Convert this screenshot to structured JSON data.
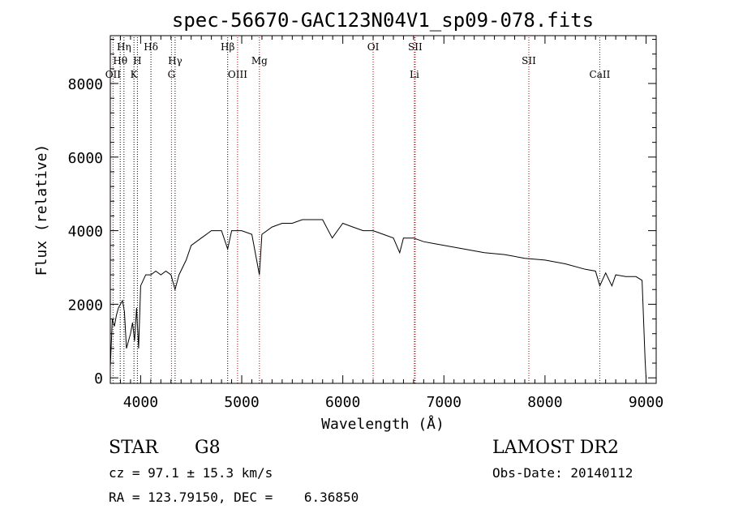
{
  "chart_data": {
    "type": "line",
    "title": "spec-56670-GAC123N04V1_sp09-078.fits",
    "xlabel": "Wavelength (Å)",
    "ylabel": "Flux (relative)",
    "xlim": [
      3700,
      9100
    ],
    "ylim": [
      -150,
      9300
    ],
    "xticks": [
      4000,
      5000,
      6000,
      7000,
      8000,
      9000
    ],
    "yticks": [
      0,
      2000,
      4000,
      6000,
      8000
    ],
    "grid": false,
    "series": [
      {
        "x": [
          3700,
          3720,
          3740,
          3760,
          3780,
          3800,
          3820,
          3840,
          3860,
          3880,
          3900,
          3920,
          3940,
          3960,
          3980,
          4000,
          4050,
          4100,
          4150,
          4200,
          4250,
          4300,
          4340,
          4380,
          4450,
          4500,
          4600,
          4700,
          4800,
          4861,
          4900,
          5000,
          5100,
          5175,
          5200,
          5300,
          5400,
          5500,
          5600,
          5700,
          5800,
          5895,
          6000,
          6100,
          6200,
          6300,
          6400,
          6500,
          6563,
          6600,
          6700,
          6800,
          6900,
          7000,
          7200,
          7400,
          7600,
          7800,
          8000,
          8200,
          8400,
          8500,
          8542,
          8600,
          8662,
          8700,
          8800,
          8900,
          8960,
          8990,
          9000
        ],
        "y": [
          300,
          1600,
          1400,
          1700,
          1900,
          2000,
          2100,
          1800,
          800,
          1000,
          1200,
          1500,
          1000,
          1900,
          800,
          2500,
          2800,
          2800,
          2900,
          2800,
          2900,
          2800,
          2400,
          2800,
          3200,
          3600,
          3800,
          4000,
          4000,
          3500,
          4000,
          4000,
          3900,
          2800,
          3900,
          4100,
          4200,
          4200,
          4300,
          4300,
          4300,
          3800,
          4200,
          4100,
          4000,
          4000,
          3900,
          3800,
          3400,
          3800,
          3800,
          3700,
          3650,
          3600,
          3500,
          3400,
          3350,
          3250,
          3200,
          3100,
          2950,
          2900,
          2500,
          2850,
          2500,
          2800,
          2750,
          2750,
          2650,
          500,
          0
        ]
      }
    ],
    "annotations": [
      {
        "label": "OII",
        "x": 3727,
        "row": 3
      },
      {
        "label": "Hθ",
        "x": 3798,
        "row": 2
      },
      {
        "label": "Hη",
        "x": 3835,
        "row": 1
      },
      {
        "label": "K",
        "x": 3934,
        "row": 3
      },
      {
        "label": "H",
        "x": 3968,
        "row": 2
      },
      {
        "label": "Hδ",
        "x": 4102,
        "row": 1
      },
      {
        "label": "G",
        "x": 4305,
        "row": 3
      },
      {
        "label": "Hγ",
        "x": 4341,
        "row": 2
      },
      {
        "label": "Hβ",
        "x": 4861,
        "row": 1
      },
      {
        "label": "OIII",
        "x": 4959,
        "row": 3
      },
      {
        "label": "Mg",
        "x": 5175,
        "row": 2
      },
      {
        "label": "OI",
        "x": 6300,
        "row": 1
      },
      {
        "label": "SII",
        "x": 6716,
        "row": 1
      },
      {
        "label": "Li",
        "x": 6708,
        "row": 3
      },
      {
        "label": "SII",
        "x": 7840,
        "row": 2
      },
      {
        "label": "CaII",
        "x": 8542,
        "row": 3
      }
    ]
  },
  "info": {
    "class": "STAR",
    "subclass": "G8",
    "survey": "LAMOST DR2",
    "cz": "cz = 97.1 ± 15.3 km/s",
    "obs_date": "Obs-Date: 20140112",
    "radec": "RA = 123.79150, DEC =    6.36850"
  }
}
